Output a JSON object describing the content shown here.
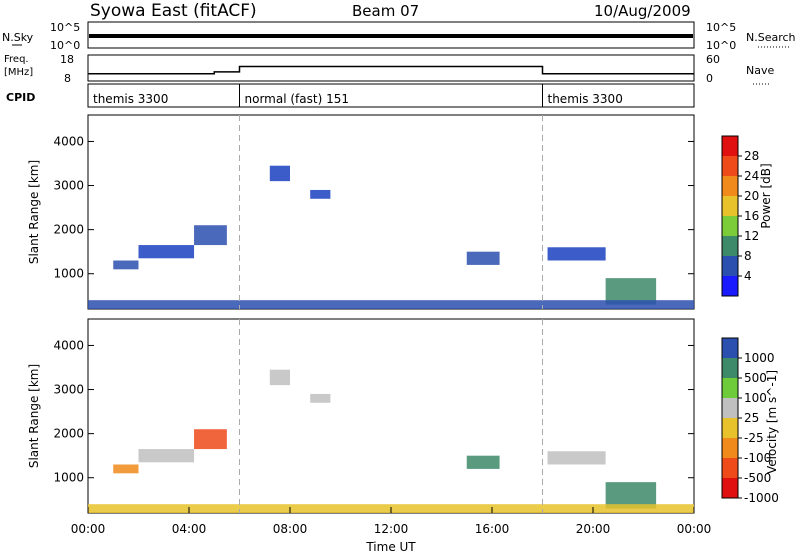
{
  "header": {
    "title": "Syowa East (fitACF)",
    "beam": "Beam 07",
    "date": "10/Aug/2009"
  },
  "top_panels": {
    "nsky_label": "N.Sky",
    "nsky_ticks": [
      "10^5",
      "10^0"
    ],
    "nsearch_label": "N.Search",
    "nsearch_ticks": [
      "10^5",
      "10^0"
    ],
    "freq_label_1": "Freq.",
    "freq_label_2": "[MHz]",
    "freq_ticks": [
      "18",
      "8"
    ],
    "nave_label": "Nave",
    "nave_ticks": [
      "60",
      "0"
    ],
    "cpid_label": "CPID",
    "cpid_segments": [
      {
        "label": "themis 3300",
        "start_hour": 0,
        "end_hour": 6
      },
      {
        "label": "normal (fast) 151",
        "start_hour": 6,
        "end_hour": 18
      },
      {
        "label": "themis 3300",
        "start_hour": 18,
        "end_hour": 24
      }
    ],
    "freq_steps": [
      {
        "start_hour": 0,
        "end_hour": 5,
        "mhz": 10.8
      },
      {
        "start_hour": 5,
        "end_hour": 6,
        "mhz": 11.5
      },
      {
        "start_hour": 6,
        "end_hour": 18,
        "mhz": 13.6
      },
      {
        "start_hour": 18,
        "end_hour": 24,
        "mhz": 10.8
      }
    ]
  },
  "chart_data": [
    {
      "type": "heatmap",
      "name": "power",
      "ylabel": "Slant Range [km]",
      "ylim": [
        200,
        4600
      ],
      "yticks": [
        "1000",
        "2000",
        "3000",
        "4000"
      ],
      "xlim": [
        0,
        24
      ],
      "colorbar_label": "Power [dB]",
      "colorbar_ticks": [
        "4",
        "8",
        "12",
        "16",
        "20",
        "24",
        "28"
      ],
      "colorbar_colors": [
        "#1a1aff",
        "#2b4fae",
        "#3d8a6a",
        "#7ccc3a",
        "#e8c22a",
        "#f08a1a",
        "#ee4a1a",
        "#e01010"
      ],
      "echo_regions": [
        {
          "hours": [
            1.0,
            2.0
          ],
          "range_km": [
            1100,
            1300
          ],
          "color": "#2b4fae"
        },
        {
          "hours": [
            2.0,
            4.2
          ],
          "range_km": [
            1350,
            1650
          ],
          "color": "#1a3fc0"
        },
        {
          "hours": [
            4.2,
            5.5
          ],
          "range_km": [
            1650,
            2100
          ],
          "color": "#2b4fae"
        },
        {
          "hours": [
            7.2,
            8.0
          ],
          "range_km": [
            3100,
            3450
          ],
          "color": "#1a3fc0"
        },
        {
          "hours": [
            8.8,
            9.6
          ],
          "range_km": [
            2700,
            2900
          ],
          "color": "#1a3fc0"
        },
        {
          "hours": [
            15.0,
            16.3
          ],
          "range_km": [
            1200,
            1500
          ],
          "color": "#2b4fae"
        },
        {
          "hours": [
            18.2,
            20.5
          ],
          "range_km": [
            1300,
            1600
          ],
          "color": "#1a3fc0"
        },
        {
          "hours": [
            20.5,
            22.5
          ],
          "range_km": [
            300,
            900
          ],
          "color": "#3d8a6a"
        },
        {
          "hours": [
            0.0,
            24.0
          ],
          "range_km": [
            200,
            400
          ],
          "color": "#2b4fae"
        }
      ]
    },
    {
      "type": "heatmap",
      "name": "velocity",
      "ylabel": "Slant Range [km]",
      "ylim": [
        200,
        4600
      ],
      "yticks": [
        "1000",
        "2000",
        "3000",
        "4000"
      ],
      "xlim": [
        0,
        24
      ],
      "colorbar_label": "Velocity [m s^-1]",
      "colorbar_ticks": [
        "1000",
        "500",
        "100",
        "25",
        "-25",
        "-100",
        "-500",
        "-1000"
      ],
      "colorbar_colors": [
        "#2b4fae",
        "#3d8a6a",
        "#6ecc3a",
        "#c0c0c0",
        "#e8c22a",
        "#f08a1a",
        "#ee4a1a",
        "#e01010"
      ],
      "echo_regions": [
        {
          "hours": [
            1.0,
            2.0
          ],
          "range_km": [
            1100,
            1300
          ],
          "color": "#f08a1a"
        },
        {
          "hours": [
            2.0,
            4.2
          ],
          "range_km": [
            1350,
            1650
          ],
          "color": "#c0c0c0"
        },
        {
          "hours": [
            4.2,
            5.5
          ],
          "range_km": [
            1650,
            2100
          ],
          "color": "#ee4a1a"
        },
        {
          "hours": [
            7.2,
            8.0
          ],
          "range_km": [
            3100,
            3450
          ],
          "color": "#c0c0c0"
        },
        {
          "hours": [
            8.8,
            9.6
          ],
          "range_km": [
            2700,
            2900
          ],
          "color": "#c0c0c0"
        },
        {
          "hours": [
            15.0,
            16.3
          ],
          "range_km": [
            1200,
            1500
          ],
          "color": "#3d8a6a"
        },
        {
          "hours": [
            18.2,
            20.5
          ],
          "range_km": [
            1300,
            1600
          ],
          "color": "#c0c0c0"
        },
        {
          "hours": [
            20.5,
            22.5
          ],
          "range_km": [
            300,
            900
          ],
          "color": "#3d8a6a"
        },
        {
          "hours": [
            0.0,
            24.0
          ],
          "range_km": [
            200,
            400
          ],
          "color": "#e8c22a"
        }
      ]
    }
  ],
  "x_axis": {
    "ticks": [
      "00:00",
      "04:00",
      "08:00",
      "12:00",
      "16:00",
      "20:00",
      "00:00"
    ],
    "tick_hours": [
      0,
      4,
      8,
      12,
      16,
      20,
      24
    ],
    "label": "Time UT"
  }
}
